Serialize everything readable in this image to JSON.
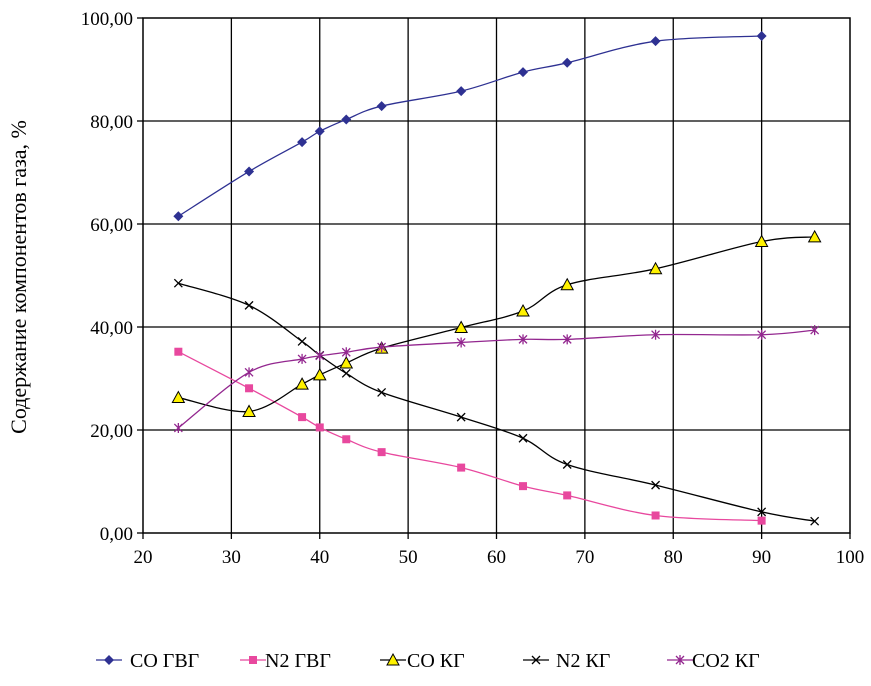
{
  "chart_data": {
    "type": "line",
    "xlabel": "",
    "ylabel": "Содержание компонентов газа, %",
    "xlim": [
      20,
      100
    ],
    "ylim": [
      0,
      100
    ],
    "x_ticks": [
      "20",
      "30",
      "40",
      "50",
      "60",
      "70",
      "80",
      "90",
      "100"
    ],
    "y_ticks": [
      "0,00",
      "20,00",
      "40,00",
      "60,00",
      "80,00",
      "100,00"
    ],
    "grid": true,
    "legend_position": "bottom",
    "series": [
      {
        "name": "CO ГВГ",
        "color": "#2E3192",
        "marker": "diamond",
        "points": [
          [
            24,
            61.5
          ],
          [
            32,
            70.2
          ],
          [
            38,
            75.9
          ],
          [
            40,
            78.0
          ],
          [
            43,
            80.3
          ],
          [
            47,
            82.9
          ],
          [
            56,
            85.8
          ],
          [
            63,
            89.5
          ],
          [
            68,
            91.3
          ],
          [
            78,
            95.5
          ],
          [
            90,
            96.5
          ]
        ]
      },
      {
        "name": "N2 ГВГ",
        "color": "#E8489E",
        "marker": "square",
        "points": [
          [
            24,
            35.2
          ],
          [
            32,
            28.1
          ],
          [
            38,
            22.5
          ],
          [
            40,
            20.5
          ],
          [
            43,
            18.2
          ],
          [
            47,
            15.7
          ],
          [
            56,
            12.7
          ],
          [
            63,
            9.1
          ],
          [
            68,
            7.3
          ],
          [
            78,
            3.4
          ],
          [
            90,
            2.4
          ]
        ]
      },
      {
        "name": "CO КГ",
        "color": "#000000",
        "fill": "#FFF200",
        "marker": "triangle",
        "points": [
          [
            24,
            26.3
          ],
          [
            32,
            23.6
          ],
          [
            38,
            28.9
          ],
          [
            40,
            30.7
          ],
          [
            43,
            33.0
          ],
          [
            47,
            35.9
          ],
          [
            56,
            39.9
          ],
          [
            63,
            43.1
          ],
          [
            68,
            48.2
          ],
          [
            78,
            51.3
          ],
          [
            90,
            56.6
          ],
          [
            96,
            57.5
          ]
        ]
      },
      {
        "name": "N2 КГ",
        "color": "#000000",
        "marker": "x",
        "points": [
          [
            24,
            48.5
          ],
          [
            32,
            44.2
          ],
          [
            38,
            37.2
          ],
          [
            40,
            34.5
          ],
          [
            43,
            31.0
          ],
          [
            47,
            27.3
          ],
          [
            56,
            22.5
          ],
          [
            63,
            18.4
          ],
          [
            68,
            13.3
          ],
          [
            78,
            9.3
          ],
          [
            90,
            4.1
          ],
          [
            96,
            2.3
          ]
        ]
      },
      {
        "name": "CO2 КГ",
        "color": "#93278F",
        "marker": "asterisk",
        "points": [
          [
            24,
            20.4
          ],
          [
            32,
            31.2
          ],
          [
            38,
            33.8
          ],
          [
            40,
            34.4
          ],
          [
            43,
            35.1
          ],
          [
            47,
            36.1
          ],
          [
            56,
            37.0
          ],
          [
            63,
            37.6
          ],
          [
            68,
            37.6
          ],
          [
            78,
            38.5
          ],
          [
            90,
            38.5
          ],
          [
            96,
            39.4
          ]
        ]
      }
    ]
  }
}
